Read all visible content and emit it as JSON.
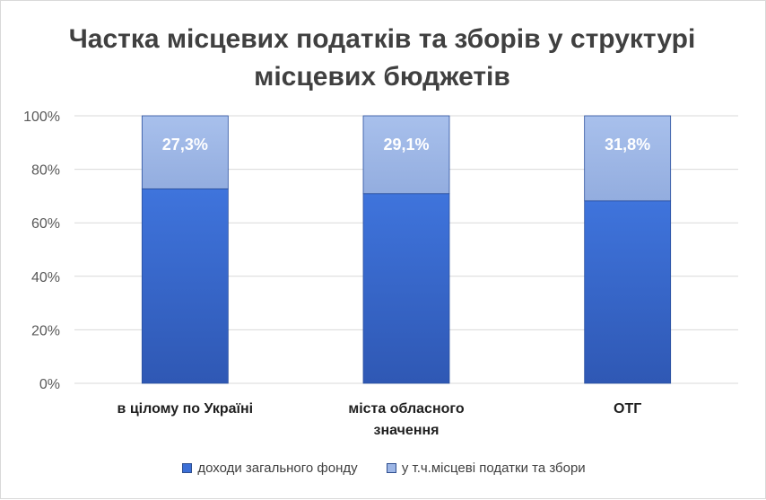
{
  "chart_data": {
    "type": "bar",
    "stacked": true,
    "title_lines": [
      "Частка місцевих податків та зборів у структурі",
      "місцевих бюджетів"
    ],
    "categories": [
      "в цілому по Україні",
      "міста обласного значення",
      "ОТГ"
    ],
    "category_lines": [
      [
        "в цілому по Україні"
      ],
      [
        "міста обласного",
        "значення"
      ],
      [
        "ОТГ"
      ]
    ],
    "series": [
      {
        "name": "доходи загального фонду",
        "values": [
          72.7,
          70.9,
          68.2
        ],
        "color": "#3c6fd6"
      },
      {
        "name": "у т.ч.місцеві податки та збори",
        "values": [
          27.3,
          29.1,
          31.8
        ],
        "color": "#9db6e6"
      }
    ],
    "data_labels": [
      "27,3%",
      "29,1%",
      "31,8%"
    ],
    "y_ticks": [
      "0%",
      "20%",
      "40%",
      "60%",
      "80%",
      "100%"
    ],
    "ylim": [
      0,
      100
    ],
    "grid": true,
    "legend_position": "bottom"
  }
}
